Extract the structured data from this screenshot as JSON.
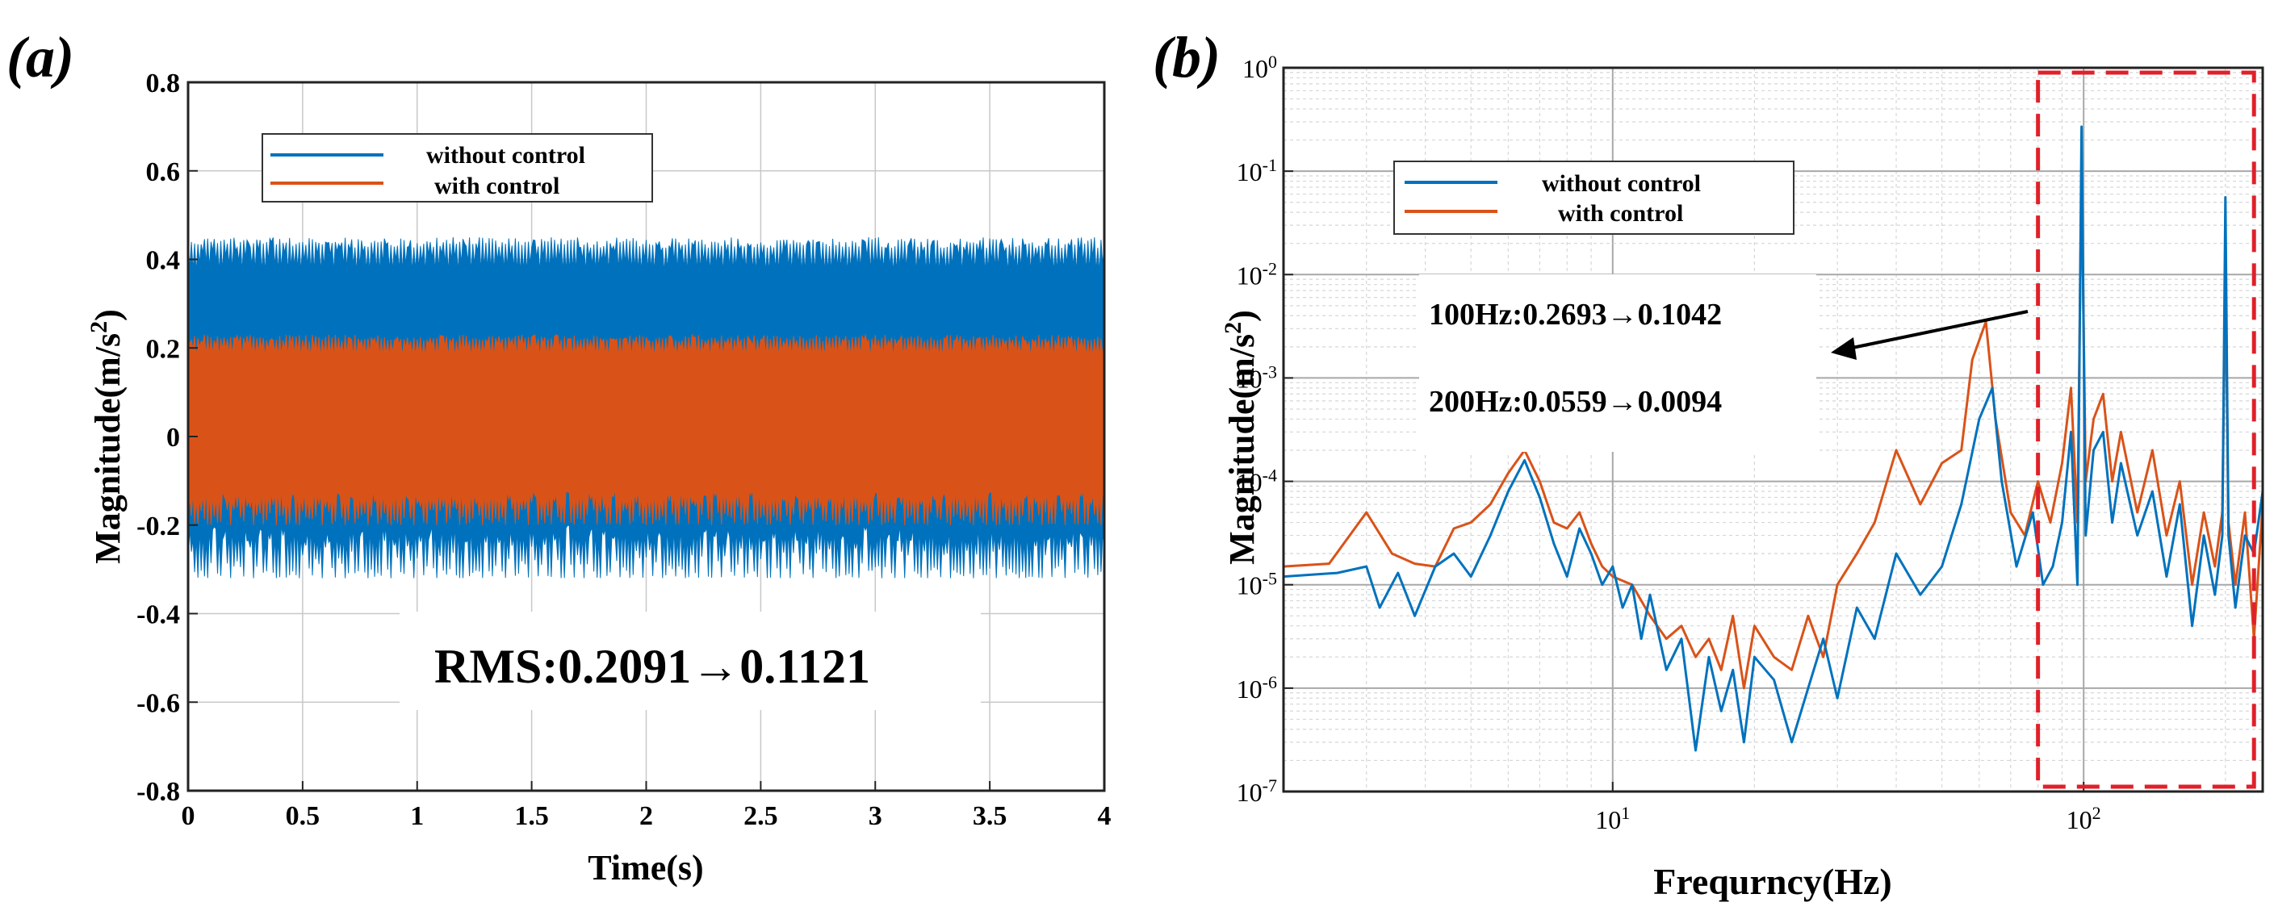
{
  "colors": {
    "without": "#0072BD",
    "with": "#D95319",
    "grid": "#c8c8c8",
    "highlight": "#E0202A",
    "axis": "#222222"
  },
  "chart_data": [
    {
      "panel_label": "(a)",
      "type": "line",
      "xlabel": "Time(s)",
      "ylabel": "Magnitude(m/s",
      "ylabel_sup": "2",
      "ylabel_close": ")",
      "xlim": [
        0,
        4
      ],
      "ylim": [
        -0.8,
        0.8
      ],
      "x_ticks": [
        0,
        0.5,
        1,
        1.5,
        2,
        2.5,
        3,
        3.5,
        4
      ],
      "x_tick_labels": [
        "0",
        "0.5",
        "1",
        "1.5",
        "2",
        "2.5",
        "3",
        "3.5",
        "4"
      ],
      "y_ticks": [
        -0.8,
        -0.6,
        -0.4,
        -0.2,
        0,
        0.2,
        0.4,
        0.6,
        0.8
      ],
      "y_tick_labels": [
        "-0.8",
        "-0.6",
        "-0.4",
        "-0.2",
        "0",
        "0.2",
        "0.4",
        "0.6",
        "0.8"
      ],
      "grid": true,
      "legend_position": "top-left",
      "series": [
        {
          "name": "without control",
          "upper_envelope": [
            0.37,
            0.45
          ],
          "lower_envelope": [
            -0.32,
            -0.2
          ]
        },
        {
          "name": "with control",
          "upper_envelope": [
            0.18,
            0.23
          ],
          "lower_envelope": [
            -0.2,
            -0.12
          ]
        }
      ],
      "annotation": "RMS:0.2091→0.1121"
    },
    {
      "panel_label": "(b)",
      "type": "line",
      "xscale": "log",
      "yscale": "log",
      "xlabel": "Frequrncy(Hz)",
      "ylabel": "Magnitude(m/s",
      "ylabel_sup": "2",
      "ylabel_close": ")",
      "xlim": [
        2,
        240
      ],
      "ylim": [
        1e-07,
        1
      ],
      "x_tick_values": [
        10,
        100
      ],
      "x_tick_base": "10",
      "x_tick_exponents": [
        "1",
        "2"
      ],
      "y_tick_values": [
        1e-07,
        1e-06,
        1e-05,
        0.0001,
        0.001,
        0.01,
        0.1,
        1
      ],
      "y_tick_base": "10",
      "y_tick_exponents": [
        "-7",
        "-6",
        "-5",
        "-4",
        "-3",
        "-2",
        "-1",
        "0"
      ],
      "grid": true,
      "legend_position": "top-left",
      "series": [
        {
          "name": "without control",
          "points": [
            [
              2,
              1.2e-05
            ],
            [
              2.6,
              1.3e-05
            ],
            [
              3,
              1.5e-05
            ],
            [
              3.2,
              6e-06
            ],
            [
              3.5,
              1.3e-05
            ],
            [
              3.8,
              5e-06
            ],
            [
              4.2,
              1.5e-05
            ],
            [
              4.6,
              2e-05
            ],
            [
              5,
              1.2e-05
            ],
            [
              5.5,
              3e-05
            ],
            [
              6,
              8e-05
            ],
            [
              6.5,
              0.00016
            ],
            [
              7,
              7e-05
            ],
            [
              7.5,
              2.5e-05
            ],
            [
              8,
              1.2e-05
            ],
            [
              8.5,
              3.5e-05
            ],
            [
              9,
              2e-05
            ],
            [
              9.5,
              1e-05
            ],
            [
              10,
              1.5e-05
            ],
            [
              10.5,
              6e-06
            ],
            [
              11,
              1e-05
            ],
            [
              11.5,
              3e-06
            ],
            [
              12,
              8e-06
            ],
            [
              13,
              1.5e-06
            ],
            [
              14,
              3e-06
            ],
            [
              15,
              2.5e-07
            ],
            [
              16,
              2e-06
            ],
            [
              17,
              6e-07
            ],
            [
              18,
              1.5e-06
            ],
            [
              19,
              3e-07
            ],
            [
              20,
              2e-06
            ],
            [
              22,
              1.2e-06
            ],
            [
              24,
              3e-07
            ],
            [
              26,
              1e-06
            ],
            [
              28,
              3e-06
            ],
            [
              30,
              8e-07
            ],
            [
              33,
              6e-06
            ],
            [
              36,
              3e-06
            ],
            [
              40,
              2e-05
            ],
            [
              45,
              8e-06
            ],
            [
              50,
              1.5e-05
            ],
            [
              55,
              6e-05
            ],
            [
              60,
              0.0004
            ],
            [
              64,
              0.0008
            ],
            [
              67,
              0.0001
            ],
            [
              72,
              1.5e-05
            ],
            [
              78,
              5e-05
            ],
            [
              82,
              1e-05
            ],
            [
              86,
              1.5e-05
            ],
            [
              90,
              4e-05
            ],
            [
              94,
              0.0003
            ],
            [
              97,
              1e-05
            ],
            [
              99,
              0.2693
            ],
            [
              101,
              3e-05
            ],
            [
              105,
              0.0002
            ],
            [
              110,
              0.0003
            ],
            [
              115,
              4e-05
            ],
            [
              120,
              0.00015
            ],
            [
              130,
              3e-05
            ],
            [
              140,
              8e-05
            ],
            [
              150,
              1.2e-05
            ],
            [
              160,
              6e-05
            ],
            [
              170,
              4e-06
            ],
            [
              180,
              3e-05
            ],
            [
              190,
              8e-06
            ],
            [
              197,
              3e-05
            ],
            [
              200,
              0.0559
            ],
            [
              203,
              3e-05
            ],
            [
              210,
              6e-06
            ],
            [
              220,
              3e-05
            ],
            [
              230,
              2e-05
            ],
            [
              240,
              8e-05
            ]
          ]
        },
        {
          "name": "with control",
          "points": [
            [
              2,
              1.5e-05
            ],
            [
              2.5,
              1.6e-05
            ],
            [
              3,
              5e-05
            ],
            [
              3.4,
              2e-05
            ],
            [
              3.8,
              1.6e-05
            ],
            [
              4.2,
              1.5e-05
            ],
            [
              4.6,
              3.5e-05
            ],
            [
              5,
              4e-05
            ],
            [
              5.5,
              6e-05
            ],
            [
              6,
              0.00012
            ],
            [
              6.5,
              0.0002
            ],
            [
              7,
              0.0001
            ],
            [
              7.5,
              4e-05
            ],
            [
              8,
              3.5e-05
            ],
            [
              8.5,
              5e-05
            ],
            [
              9,
              2.5e-05
            ],
            [
              9.5,
              1.5e-05
            ],
            [
              10,
              1.2e-05
            ],
            [
              11,
              1e-05
            ],
            [
              12,
              5e-06
            ],
            [
              13,
              3e-06
            ],
            [
              14,
              4e-06
            ],
            [
              15,
              2e-06
            ],
            [
              16,
              3e-06
            ],
            [
              17,
              1.5e-06
            ],
            [
              18,
              5e-06
            ],
            [
              19,
              1e-06
            ],
            [
              20,
              4e-06
            ],
            [
              22,
              2e-06
            ],
            [
              24,
              1.5e-06
            ],
            [
              26,
              5e-06
            ],
            [
              28,
              2e-06
            ],
            [
              30,
              1e-05
            ],
            [
              33,
              2e-05
            ],
            [
              36,
              4e-05
            ],
            [
              40,
              0.0002
            ],
            [
              45,
              6e-05
            ],
            [
              50,
              0.00015
            ],
            [
              55,
              0.0002
            ],
            [
              58,
              0.0015
            ],
            [
              62,
              0.0035
            ],
            [
              65,
              0.0004
            ],
            [
              70,
              5e-05
            ],
            [
              75,
              3e-05
            ],
            [
              80,
              0.0001
            ],
            [
              85,
              4e-05
            ],
            [
              90,
              0.00015
            ],
            [
              94,
              0.0008
            ],
            [
              97,
              4e-05
            ],
            [
              99,
              0.1042
            ],
            [
              101,
              0.0001
            ],
            [
              105,
              0.0004
            ],
            [
              110,
              0.0007
            ],
            [
              115,
              0.0001
            ],
            [
              120,
              0.0003
            ],
            [
              130,
              5e-05
            ],
            [
              140,
              0.0002
            ],
            [
              150,
              3e-05
            ],
            [
              160,
              0.0001
            ],
            [
              170,
              1e-05
            ],
            [
              180,
              5e-05
            ],
            [
              190,
              1.5e-05
            ],
            [
              197,
              5e-05
            ],
            [
              200,
              0.0094
            ],
            [
              203,
              4e-05
            ],
            [
              210,
              1e-05
            ],
            [
              220,
              5e-05
            ],
            [
              230,
              3e-06
            ],
            [
              240,
              6e-05
            ]
          ]
        }
      ],
      "highlight_region": [
        80,
        230
      ],
      "annotations": [
        "100Hz:0.2693→0.1042",
        "200Hz:0.0559→0.0094"
      ]
    }
  ]
}
